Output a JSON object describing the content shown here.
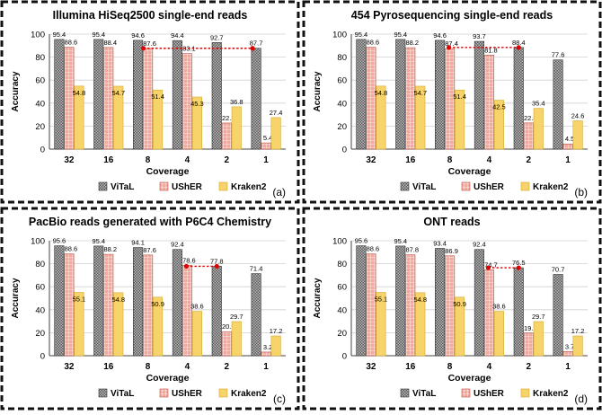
{
  "colors": {
    "vital": "#7f7f7f",
    "usher": "#f4a79a",
    "kraken": "#f6d36b",
    "arrow": "#e00000",
    "frame": "#111111"
  },
  "legend": {
    "vital": "ViTaL",
    "usher": "UShER",
    "kraken": "Kraken2"
  },
  "chart_data": [
    {
      "type": "bar",
      "title": "Illumina HiSeq2500 single-end reads",
      "panel_label": "(a)",
      "xlabel": "Coverage",
      "ylabel": "Accuracy",
      "ylim": [
        0,
        100
      ],
      "yticks": [
        0,
        20,
        40,
        60,
        80,
        100
      ],
      "categories": [
        "32",
        "16",
        "8",
        "4",
        "2",
        "1"
      ],
      "series": [
        {
          "name": "ViTaL",
          "values": [
            95.4,
            95.4,
            94.6,
            94.4,
            92.7,
            87.7
          ]
        },
        {
          "name": "UShER",
          "values": [
            88.6,
            88.4,
            87.6,
            83.1,
            22.7,
            5.4
          ]
        },
        {
          "name": "Kraken2",
          "values": [
            54.8,
            54.7,
            51.4,
            45.3,
            36.8,
            27.4
          ]
        }
      ],
      "annotation": {
        "from_category": "8",
        "to_category": "1",
        "series": "ViTaL",
        "style": "dashed double arrow"
      }
    },
    {
      "type": "bar",
      "title": "454 Pyrosequencing single-end reads",
      "panel_label": "(b)",
      "xlabel": "Coverage",
      "ylabel": "Accuracy",
      "ylim": [
        0,
        100
      ],
      "yticks": [
        0,
        20,
        40,
        60,
        80,
        100
      ],
      "categories": [
        "32",
        "16",
        "8",
        "4",
        "2",
        "1"
      ],
      "series": [
        {
          "name": "ViTaL",
          "values": [
            95.4,
            95.4,
            94.6,
            93.7,
            88.4,
            77.6
          ]
        },
        {
          "name": "UShER",
          "values": [
            88.6,
            88.2,
            87.4,
            81.8,
            22.8,
            4.5
          ]
        },
        {
          "name": "Kraken2",
          "values": [
            54.8,
            54.7,
            51.4,
            42.5,
            35.4,
            24.6
          ]
        }
      ],
      "annotation": {
        "from_category": "8",
        "to_category": "2",
        "series": "UShER-ViTaL",
        "style": "dashed double arrow"
      }
    },
    {
      "type": "bar",
      "title": "PacBio reads generated with P6C4 Chemistry",
      "panel_label": "(c)",
      "xlabel": "Coverage",
      "ylabel": "Accuracy",
      "ylim": [
        0,
        100
      ],
      "yticks": [
        0,
        20,
        40,
        60,
        80,
        100
      ],
      "categories": [
        "32",
        "16",
        "8",
        "4",
        "2",
        "1"
      ],
      "series": [
        {
          "name": "ViTaL",
          "values": [
            95.6,
            95.4,
            94.1,
            92.4,
            77.8,
            71.4
          ]
        },
        {
          "name": "UShER",
          "values": [
            88.6,
            88.2,
            87.6,
            78.6,
            20.9,
            3.2
          ]
        },
        {
          "name": "Kraken2",
          "values": [
            55.1,
            54.8,
            50.9,
            38.6,
            29.7,
            17.2
          ]
        }
      ],
      "annotation": {
        "from_category": "4",
        "to_category": "2",
        "series": "UShER-ViTaL",
        "style": "dashed double arrow"
      }
    },
    {
      "type": "bar",
      "title": "ONT reads",
      "panel_label": "(d)",
      "xlabel": "Coverage",
      "ylabel": "Accuracy",
      "ylim": [
        0,
        100
      ],
      "yticks": [
        0,
        20,
        40,
        60,
        80,
        100
      ],
      "categories": [
        "32",
        "16",
        "8",
        "4",
        "2",
        "1"
      ],
      "series": [
        {
          "name": "ViTaL",
          "values": [
            95.6,
            95.4,
            93.4,
            92.4,
            76.5,
            70.7
          ]
        },
        {
          "name": "UShER",
          "values": [
            88.6,
            87.8,
            86.9,
            74.7,
            19.7,
            3.7
          ]
        },
        {
          "name": "Kraken2",
          "values": [
            55.1,
            54.8,
            50.9,
            38.6,
            29.7,
            17.2
          ]
        }
      ],
      "annotation": {
        "from_category": "4",
        "to_category": "2",
        "series": "UShER-ViTaL",
        "style": "dashed double arrow"
      }
    }
  ]
}
